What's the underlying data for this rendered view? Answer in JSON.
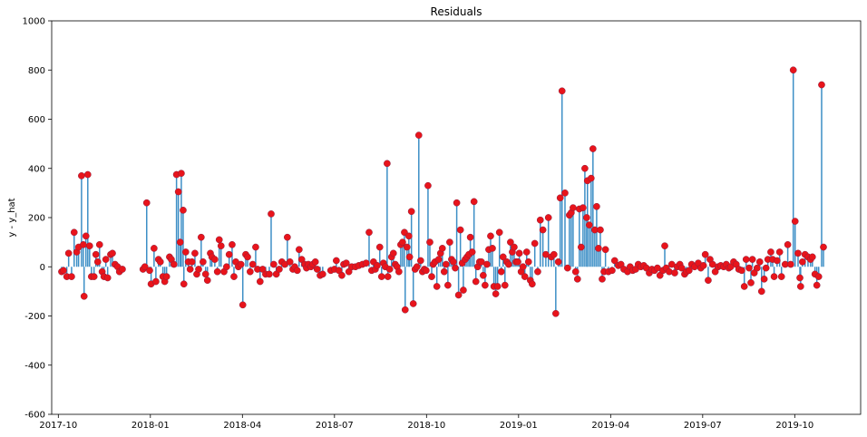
{
  "chart_data": {
    "type": "stem",
    "title": "Residuals",
    "y_label": "y - y_hat",
    "stem_color": "#3d8fc6",
    "marker_color": "#e8141b",
    "marker_edge": "#8a2040",
    "xlim": [
      2017.732,
      2019.929
    ],
    "ylim": [
      -600,
      1000
    ],
    "yticks": [
      -600,
      -400,
      -200,
      0,
      200,
      400,
      600,
      800,
      1000
    ],
    "xticks": [
      {
        "value": 2017.75,
        "label": "2017-10"
      },
      {
        "value": 2018.0,
        "label": "2018-01"
      },
      {
        "value": 2018.25,
        "label": "2018-04"
      },
      {
        "value": 2018.5,
        "label": "2018-07"
      },
      {
        "value": 2018.75,
        "label": "2018-10"
      },
      {
        "value": 2019.0,
        "label": "2019-01"
      },
      {
        "value": 2019.25,
        "label": "2019-04"
      },
      {
        "value": 2019.5,
        "label": "2019-07"
      },
      {
        "value": 2019.75,
        "label": "2019-10"
      }
    ],
    "x": [
      2017.759,
      2017.764,
      2017.773,
      2017.778,
      2017.786,
      2017.793,
      2017.8,
      2017.805,
      2017.813,
      2017.818,
      2017.82,
      2017.825,
      2017.83,
      2017.835,
      2017.84,
      2017.847,
      2017.852,
      2017.857,
      2017.862,
      2017.869,
      2017.874,
      2017.879,
      2017.884,
      2017.892,
      2017.897,
      2017.904,
      2017.911,
      2017.916,
      2017.924,
      2017.98,
      2017.985,
      2017.99,
      2017.998,
      2018.002,
      2018.01,
      2018.015,
      2018.022,
      2018.027,
      2018.034,
      2018.039,
      2018.044,
      2018.052,
      2018.057,
      2018.064,
      2018.071,
      2018.076,
      2018.081,
      2018.084,
      2018.089,
      2018.091,
      2018.096,
      2018.103,
      2018.108,
      2018.113,
      2018.121,
      2018.126,
      2018.131,
      2018.138,
      2018.143,
      2018.15,
      2018.155,
      2018.163,
      2018.167,
      2018.175,
      2018.182,
      2018.187,
      2018.192,
      2018.2,
      2018.207,
      2018.214,
      2018.222,
      2018.227,
      2018.232,
      2018.239,
      2018.246,
      2018.251,
      2018.259,
      2018.264,
      2018.271,
      2018.278,
      2018.286,
      2018.291,
      2018.298,
      2018.305,
      2018.313,
      2018.323,
      2018.328,
      2018.335,
      2018.342,
      2018.35,
      2018.357,
      2018.365,
      2018.372,
      2018.379,
      2018.387,
      2018.392,
      2018.399,
      2018.404,
      2018.411,
      2018.419,
      2018.424,
      2018.429,
      2018.436,
      2018.441,
      2018.448,
      2018.453,
      2018.461,
      2018.468,
      2018.49,
      2018.5,
      2018.505,
      2018.512,
      2018.52,
      2018.525,
      2018.532,
      2018.539,
      2018.547,
      2018.557,
      2018.566,
      2018.576,
      2018.586,
      2018.594,
      2018.601,
      2018.606,
      2018.611,
      2018.616,
      2018.623,
      2018.628,
      2018.633,
      2018.638,
      2018.643,
      2018.645,
      2018.65,
      2018.655,
      2018.66,
      2018.665,
      2018.67,
      2018.675,
      2018.68,
      2018.685,
      2018.69,
      2018.692,
      2018.697,
      2018.702,
      2018.704,
      2018.709,
      2018.714,
      2018.719,
      2018.724,
      2018.729,
      2018.734,
      2018.739,
      2018.744,
      2018.749,
      2018.754,
      2018.759,
      2018.764,
      2018.768,
      2018.773,
      2018.778,
      2018.783,
      2018.788,
      2018.793,
      2018.798,
      2018.803,
      2018.808,
      2018.813,
      2018.818,
      2018.823,
      2018.828,
      2018.832,
      2018.837,
      2018.842,
      2018.847,
      2018.85,
      2018.855,
      2018.86,
      2018.865,
      2018.869,
      2018.874,
      2018.879,
      2018.884,
      2018.889,
      2018.894,
      2018.899,
      2018.904,
      2018.909,
      2018.914,
      2018.919,
      2018.924,
      2018.929,
      2018.933,
      2018.938,
      2018.943,
      2018.948,
      2018.953,
      2018.958,
      2018.963,
      2018.968,
      2018.973,
      2018.978,
      2018.983,
      2018.988,
      2018.993,
      2018.998,
      2019.002,
      2019.007,
      2019.012,
      2019.017,
      2019.022,
      2019.027,
      2019.032,
      2019.037,
      2019.044,
      2019.052,
      2019.059,
      2019.066,
      2019.074,
      2019.081,
      2019.089,
      2019.096,
      2019.101,
      2019.108,
      2019.113,
      2019.118,
      2019.126,
      2019.133,
      2019.138,
      2019.143,
      2019.148,
      2019.155,
      2019.16,
      2019.165,
      2019.17,
      2019.175,
      2019.18,
      2019.185,
      2019.187,
      2019.192,
      2019.197,
      2019.202,
      2019.207,
      2019.212,
      2019.217,
      2019.222,
      2019.227,
      2019.232,
      2019.236,
      2019.244,
      2019.254,
      2019.261,
      2019.271,
      2019.278,
      2019.286,
      2019.296,
      2019.303,
      2019.31,
      2019.318,
      2019.325,
      2019.332,
      2019.34,
      2019.347,
      2019.355,
      2019.362,
      2019.369,
      2019.377,
      2019.384,
      2019.392,
      2019.397,
      2019.401,
      2019.409,
      2019.416,
      2019.424,
      2019.431,
      2019.438,
      2019.443,
      2019.451,
      2019.456,
      2019.463,
      2019.47,
      2019.478,
      2019.488,
      2019.495,
      2019.502,
      2019.507,
      2019.515,
      2019.52,
      2019.527,
      2019.534,
      2019.542,
      2019.549,
      2019.557,
      2019.564,
      2019.571,
      2019.576,
      2019.584,
      2019.591,
      2019.598,
      2019.606,
      2019.613,
      2019.618,
      2019.626,
      2019.631,
      2019.635,
      2019.64,
      2019.648,
      2019.655,
      2019.66,
      2019.667,
      2019.672,
      2019.677,
      2019.685,
      2019.69,
      2019.694,
      2019.702,
      2019.709,
      2019.714,
      2019.724,
      2019.731,
      2019.739,
      2019.746,
      2019.751,
      2019.759,
      2019.764,
      2019.766,
      2019.771,
      2019.778,
      2019.786,
      2019.793,
      2019.798,
      2019.805,
      2019.81,
      2019.815,
      2019.823,
      2019.828
    ],
    "values": [
      -20,
      -15,
      -40,
      55,
      -40,
      140,
      60,
      80,
      370,
      90,
      -120,
      125,
      375,
      85,
      -40,
      -40,
      50,
      20,
      90,
      -20,
      -40,
      30,
      -45,
      50,
      55,
      10,
      0,
      -20,
      -10,
      -10,
      0,
      260,
      -15,
      -70,
      75,
      -60,
      30,
      20,
      -40,
      -60,
      -40,
      40,
      30,
      10,
      375,
      305,
      100,
      380,
      230,
      -70,
      60,
      20,
      -10,
      20,
      55,
      -30,
      -10,
      120,
      20,
      -30,
      -55,
      55,
      40,
      30,
      -20,
      110,
      85,
      -20,
      0,
      50,
      90,
      -40,
      20,
      0,
      10,
      -155,
      50,
      40,
      -20,
      10,
      80,
      -10,
      -60,
      -10,
      -30,
      -30,
      215,
      10,
      -30,
      -10,
      20,
      10,
      120,
      20,
      -10,
      0,
      -15,
      70,
      30,
      10,
      -5,
      10,
      0,
      10,
      20,
      -10,
      -35,
      -30,
      -15,
      -10,
      25,
      -15,
      -35,
      10,
      15,
      -20,
      0,
      0,
      5,
      10,
      15,
      140,
      -15,
      20,
      -10,
      5,
      80,
      -40,
      15,
      0,
      420,
      -40,
      -10,
      40,
      55,
      10,
      0,
      -20,
      90,
      100,
      140,
      -175,
      80,
      125,
      40,
      225,
      -150,
      -10,
      0,
      535,
      25,
      -20,
      -10,
      -15,
      330,
      100,
      -40,
      10,
      20,
      -80,
      30,
      55,
      75,
      -20,
      10,
      -75,
      100,
      30,
      20,
      -5,
      260,
      -115,
      150,
      15,
      -95,
      30,
      40,
      50,
      120,
      60,
      265,
      -60,
      0,
      20,
      20,
      -35,
      -75,
      10,
      70,
      125,
      75,
      -80,
      -110,
      -80,
      140,
      -20,
      40,
      -75,
      20,
      10,
      100,
      60,
      80,
      20,
      20,
      55,
      -20,
      0,
      -40,
      60,
      20,
      -55,
      -70,
      95,
      -20,
      190,
      150,
      50,
      200,
      40,
      50,
      -190,
      20,
      280,
      715,
      300,
      -5,
      210,
      220,
      240,
      -20,
      -50,
      235,
      80,
      240,
      400,
      200,
      350,
      170,
      360,
      480,
      150,
      245,
      75,
      150,
      -50,
      -20,
      70,
      -20,
      -15,
      25,
      5,
      10,
      -10,
      -20,
      0,
      -15,
      -10,
      10,
      0,
      5,
      -5,
      -25,
      -10,
      -15,
      -5,
      -35,
      -15,
      85,
      -5,
      -20,
      10,
      -25,
      0,
      10,
      -5,
      -30,
      -20,
      -15,
      10,
      0,
      15,
      -5,
      5,
      50,
      -55,
      30,
      10,
      -20,
      0,
      5,
      0,
      10,
      -5,
      0,
      20,
      10,
      -10,
      -15,
      -80,
      30,
      -5,
      -65,
      30,
      -25,
      -5,
      20,
      -100,
      -50,
      -5,
      30,
      60,
      30,
      -40,
      25,
      60,
      -40,
      10,
      90,
      10,
      800,
      185,
      55,
      -45,
      -80,
      20,
      50,
      40,
      30,
      40,
      -30,
      -75,
      -40,
      740,
      80
    ]
  }
}
